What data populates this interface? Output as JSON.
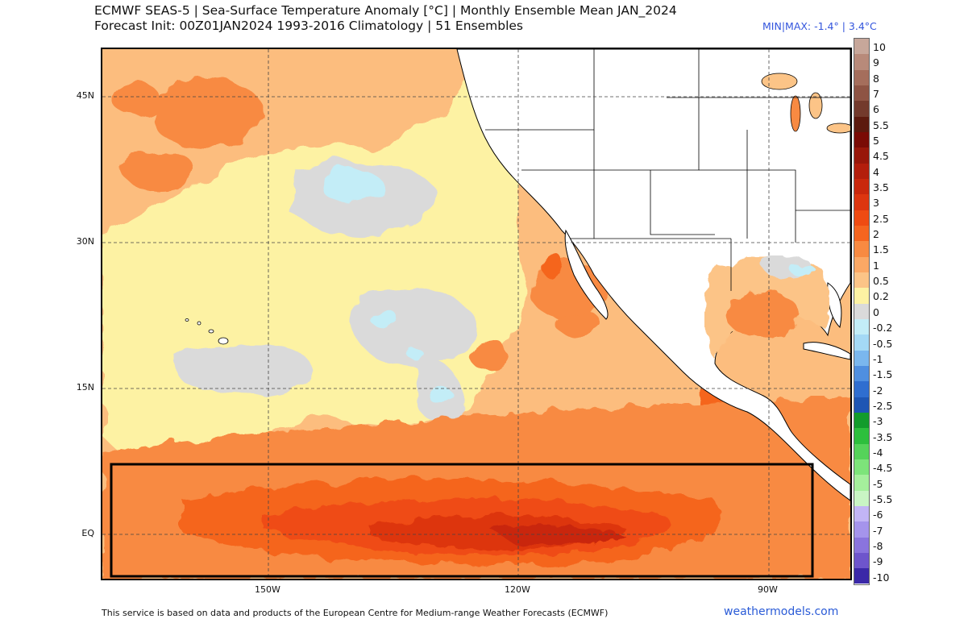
{
  "header": {
    "title_line1": "ECMWF SEAS-5 | Sea-Surface Temperature Anomaly [°C] | Monthly Ensemble Mean JAN_2024",
    "title_line2": "Forecast Init: 00Z01JAN2024     1993-2016 Climatology | 51 Ensembles",
    "minmax": "MIN|MAX: -1.4° | 3.4°C"
  },
  "map": {
    "lat_labels": [
      "45N",
      "30N",
      "15N",
      "EQ"
    ],
    "lon_labels": [
      "150W",
      "120W",
      "90W"
    ],
    "region": "Eastern Pacific / North America",
    "highlight_box": "equatorial-pacific-box",
    "colors": {
      "ocean_base": "#fcbd7e",
      "land": "#ffffff",
      "border": "#000000"
    }
  },
  "colorbar": {
    "labels": [
      "10",
      "9",
      "8",
      "7",
      "6",
      "5.5",
      "5",
      "4.5",
      "4",
      "3.5",
      "3",
      "2.5",
      "2",
      "1.5",
      "1",
      "0.5",
      "0.2",
      "0",
      "-0.2",
      "-0.5",
      "-1",
      "-1.5",
      "-2",
      "-2.5",
      "-3",
      "-3.5",
      "-4",
      "-4.5",
      "-5",
      "-5.5",
      "-6",
      "-7",
      "-8",
      "-9",
      "-10"
    ],
    "colors": [
      "#c7a79a",
      "#b88a7a",
      "#a56e5c",
      "#8e5444",
      "#733a2c",
      "#5c1a0e",
      "#7a0b05",
      "#98170a",
      "#b31e0c",
      "#c9280d",
      "#dd3610",
      "#ef4b12",
      "#f5651f",
      "#f88a42",
      "#fba865",
      "#fcc487",
      "#fdf2a3",
      "#dadada",
      "#c3edf7",
      "#a4d9f5",
      "#7ab7ee",
      "#4f8fe0",
      "#2f6ed0",
      "#1e56b4",
      "#139c2c",
      "#2dbf3d",
      "#55d35a",
      "#7de47a",
      "#a5ef9c",
      "#c9f5c4",
      "#c2b5f5",
      "#a594ec",
      "#8a74de",
      "#6e55cc",
      "#3b28a8"
    ]
  },
  "footer": {
    "credit": "This service is based on data and products of the European Centre for Medium-range Weather Forecasts (ECMWF)",
    "brand": "weathermodels.com"
  }
}
